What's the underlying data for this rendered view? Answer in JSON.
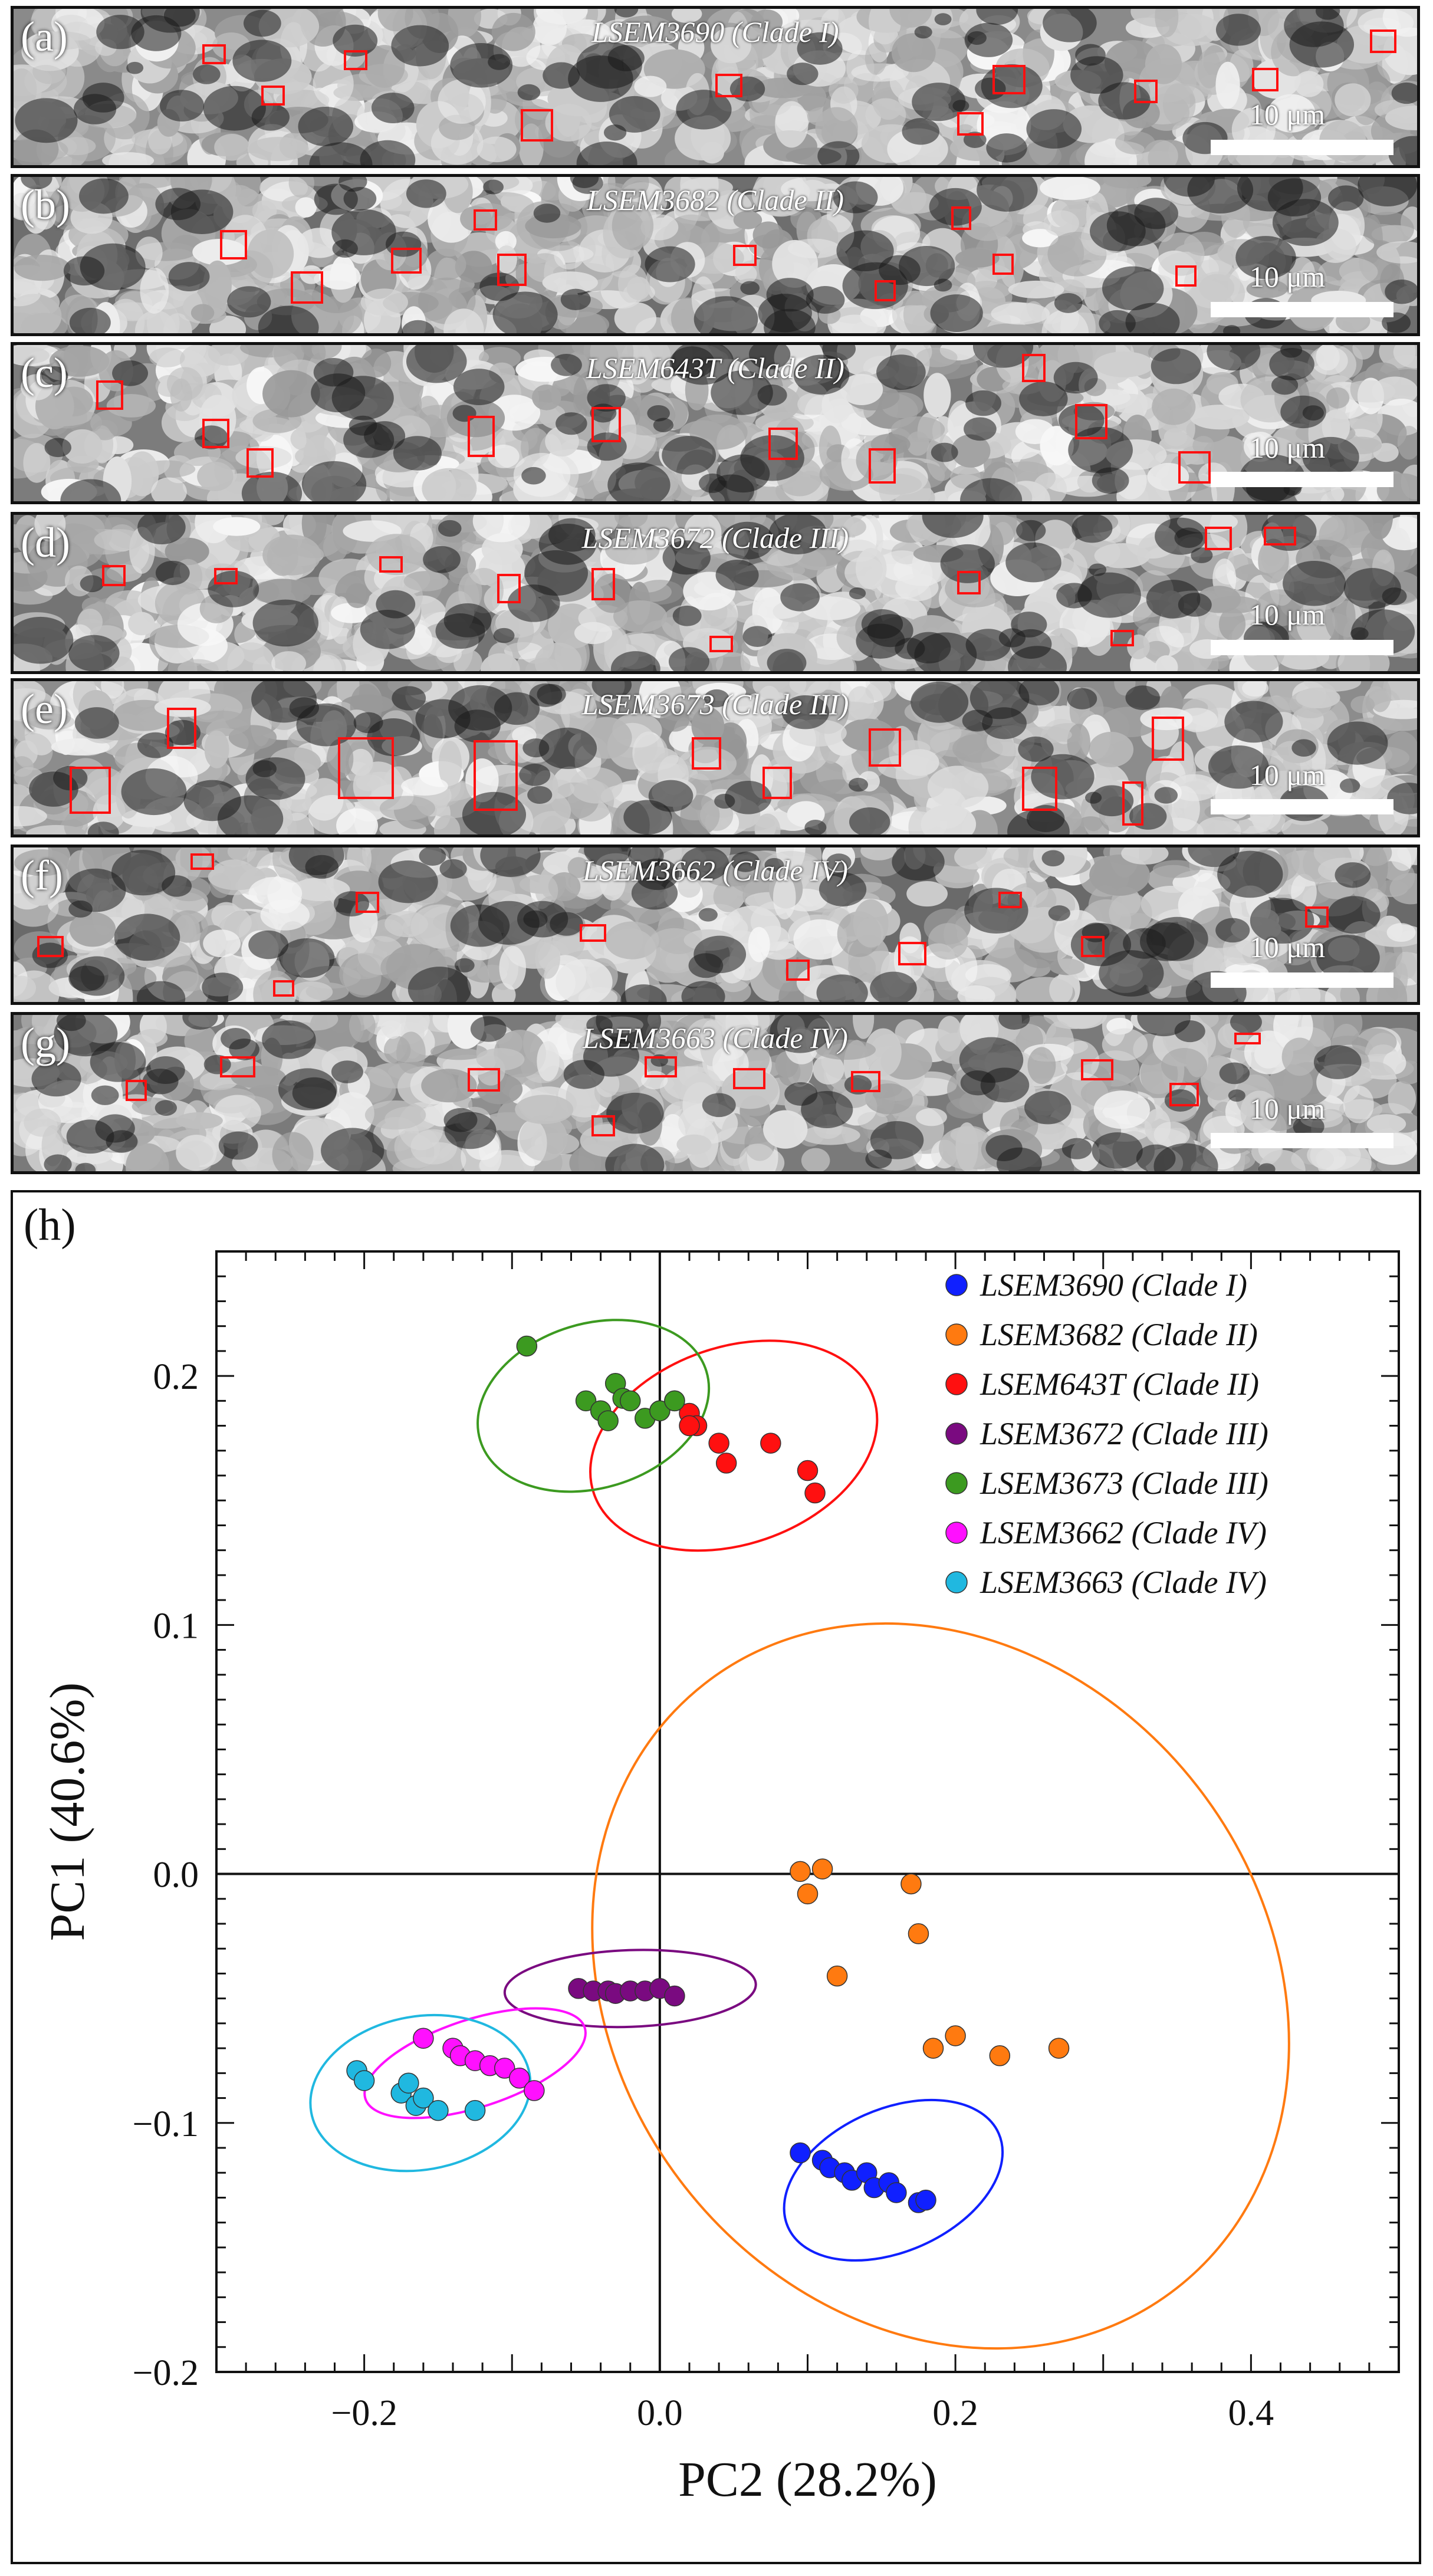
{
  "panels": [
    {
      "label": "(a)",
      "title": "LSEM3690 (Clade I)",
      "scale": "10 μm",
      "tone": "#8a8a8a"
    },
    {
      "label": "(b)",
      "title": "LSEM3682 (Clade II)",
      "scale": "10 μm",
      "tone": "#6e6e6e"
    },
    {
      "label": "(c)",
      "title": "LSEM643T (Clade II)",
      "scale": "10 μm",
      "tone": "#7c7c7c"
    },
    {
      "label": "(d)",
      "title": "LSEM3672 (Clade III)",
      "scale": "10 μm",
      "tone": "#747474"
    },
    {
      "label": "(e)",
      "title": "LSEM3673 (Clade III)",
      "scale": "10 μm",
      "tone": "#8c8c8c"
    },
    {
      "label": "(f)",
      "title": "LSEM3662 (Clade IV)",
      "scale": "10 μm",
      "tone": "#6a6a6a"
    },
    {
      "label": "(g)",
      "title": "LSEM3663 (Clade IV)",
      "scale": "10 μm",
      "tone": "#7a7a7a"
    }
  ],
  "plot_label": "(h)",
  "colors": {
    "roi": "#ff1010",
    "clade1": "#1020ff",
    "clade2_3682": "#ff7a10",
    "clade2_643T": "#ff1010",
    "clade3_3672": "#7a0a80",
    "clade3_3673": "#3c9a20",
    "clade4_3662": "#ff10ff",
    "clade4_3663": "#20b8e0"
  },
  "chart_data": {
    "type": "scatter",
    "xlabel": "PC2 (28.2%)",
    "ylabel": "PC1 (40.6%)",
    "xlim": [
      -0.3,
      0.5
    ],
    "ylim": [
      -0.2,
      0.25
    ],
    "xticks": [
      -0.2,
      0.0,
      0.2,
      0.4
    ],
    "xtick_labels": [
      "−0.2",
      "0.0",
      "0.2",
      "0.4"
    ],
    "yticks": [
      -0.2,
      -0.1,
      0.0,
      0.1,
      0.2
    ],
    "ytick_labels": [
      "−0.2",
      "−0.1",
      "0.0",
      "0.1",
      "0.2"
    ],
    "legend_position": "top-right",
    "series": [
      {
        "name": "LSEM3690 (Clade I)",
        "color": "#1020ff",
        "x": [
          0.095,
          0.11,
          0.115,
          0.125,
          0.13,
          0.14,
          0.145,
          0.155,
          0.16,
          0.175,
          0.18
        ],
        "y": [
          -0.112,
          -0.115,
          -0.118,
          -0.12,
          -0.123,
          -0.12,
          -0.126,
          -0.124,
          -0.128,
          -0.132,
          -0.131
        ],
        "ellipse": {
          "cx": 0.158,
          "cy": -0.123,
          "rx": 0.078,
          "ry": 0.013,
          "angle": -24
        }
      },
      {
        "name": "LSEM3682 (Clade II)",
        "color": "#ff7a10",
        "x": [
          0.095,
          0.1,
          0.11,
          0.12,
          0.17,
          0.175,
          0.185,
          0.2,
          0.23,
          0.27
        ],
        "y": [
          0.001,
          -0.008,
          0.002,
          -0.041,
          -0.004,
          -0.024,
          -0.07,
          -0.065,
          -0.073,
          -0.07
        ],
        "ellipse": {
          "cx": 0.19,
          "cy": -0.045,
          "rx": 0.22,
          "ry": 0.07,
          "angle": -38
        }
      },
      {
        "name": "LSEM643T (Clade II)",
        "color": "#ff1010",
        "x": [
          0.0,
          0.01,
          0.02,
          0.025,
          0.04,
          0.045,
          0.075,
          0.1,
          0.105,
          0.02
        ],
        "y": [
          0.186,
          0.19,
          0.185,
          0.18,
          0.173,
          0.165,
          0.173,
          0.162,
          0.153,
          0.18
        ],
        "ellipse": {
          "cx": 0.05,
          "cy": 0.172,
          "rx": 0.1,
          "ry": 0.018,
          "angle": -19
        }
      },
      {
        "name": "LSEM3672 (Clade III)",
        "color": "#7a0a80",
        "x": [
          -0.055,
          -0.045,
          -0.035,
          -0.03,
          -0.02,
          -0.01,
          0.0,
          0.01
        ],
        "y": [
          -0.046,
          -0.047,
          -0.047,
          -0.048,
          -0.047,
          -0.047,
          -0.046,
          -0.049
        ],
        "ellipse": {
          "cx": -0.02,
          "cy": -0.046,
          "rx": 0.085,
          "ry": 0.007,
          "angle": -2
        }
      },
      {
        "name": "LSEM3673 (Clade III)",
        "color": "#3c9a20",
        "x": [
          -0.09,
          -0.05,
          -0.04,
          -0.035,
          -0.03,
          -0.025,
          -0.02,
          -0.01,
          0.0,
          0.01
        ],
        "y": [
          0.212,
          0.19,
          0.186,
          0.182,
          0.197,
          0.191,
          0.19,
          0.183,
          0.186,
          0.19
        ],
        "ellipse": {
          "cx": -0.045,
          "cy": 0.188,
          "rx": 0.08,
          "ry": 0.015,
          "angle": -17
        }
      },
      {
        "name": "LSEM3662 (Clade IV)",
        "color": "#ff10ff",
        "x": [
          -0.16,
          -0.14,
          -0.135,
          -0.125,
          -0.115,
          -0.105,
          -0.095,
          -0.085
        ],
        "y": [
          -0.066,
          -0.07,
          -0.073,
          -0.075,
          -0.077,
          -0.078,
          -0.082,
          -0.087
        ],
        "ellipse": {
          "cx": -0.125,
          "cy": -0.076,
          "rx": 0.078,
          "ry": 0.008,
          "angle": -18
        }
      },
      {
        "name": "LSEM3663 (Clade IV)",
        "color": "#20b8e0",
        "x": [
          -0.205,
          -0.2,
          -0.175,
          -0.17,
          -0.165,
          -0.16,
          -0.15,
          -0.125
        ],
        "y": [
          -0.079,
          -0.083,
          -0.088,
          -0.084,
          -0.093,
          -0.09,
          -0.095,
          -0.095
        ],
        "ellipse": {
          "cx": -0.162,
          "cy": -0.088,
          "rx": 0.075,
          "ry": 0.014,
          "angle": -10
        }
      }
    ]
  }
}
